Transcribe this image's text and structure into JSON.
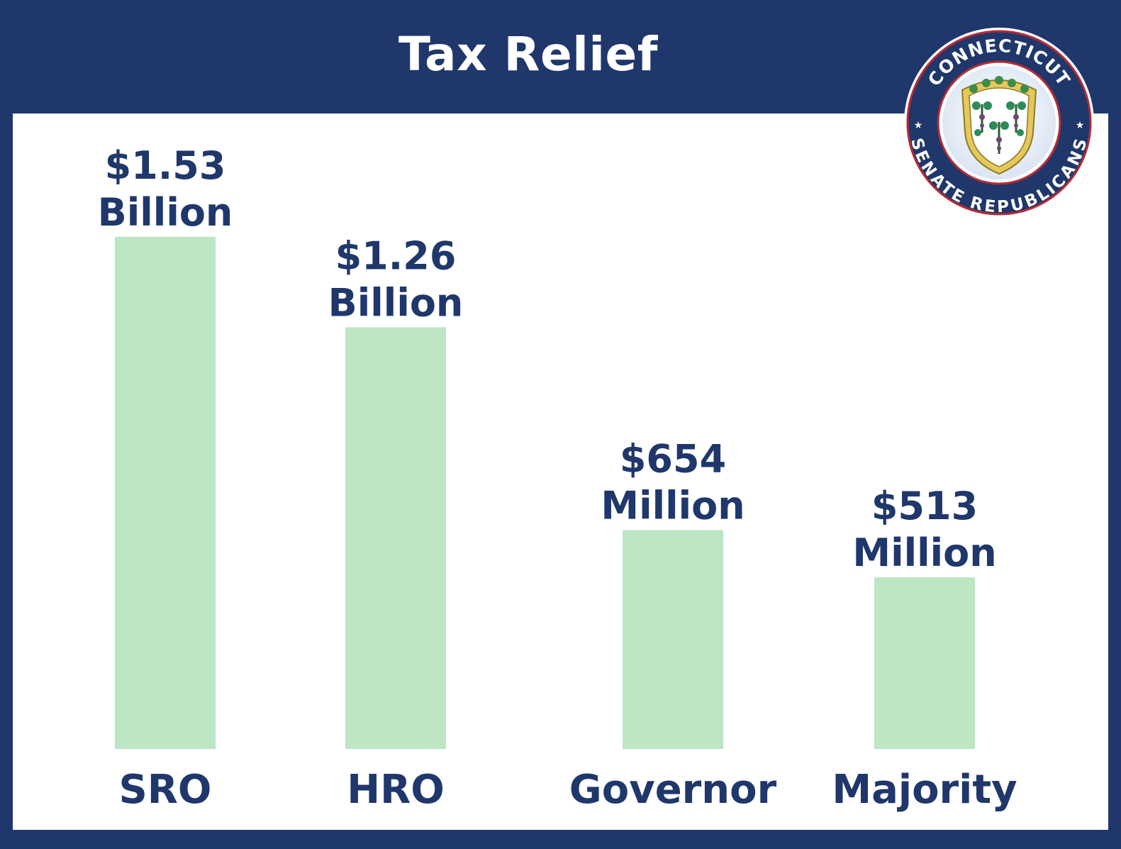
{
  "header": {
    "title": "Tax Relief"
  },
  "logo": {
    "top_text": "CONNECTICUT",
    "bottom_text": "SENATE REPUBLICANS"
  },
  "colors": {
    "header_background": "#1f376b",
    "bar_fill": "#bce6c4",
    "text_navy": "#1f376b",
    "panel_background": "#ffffff"
  },
  "chart_data": {
    "type": "bar",
    "title": "Tax Relief",
    "unit": "USD",
    "categories": [
      "SRO",
      "HRO",
      "Governor",
      "Majority"
    ],
    "values": [
      1530000000,
      1260000000,
      654000000,
      513000000
    ],
    "data_labels": [
      [
        "$1.53",
        "Billion"
      ],
      [
        "$1.26",
        "Billion"
      ],
      [
        "$654",
        "Million"
      ],
      [
        "$513",
        "Million"
      ]
    ],
    "xlabel": "",
    "ylabel": "",
    "grid": false,
    "legend": "none"
  }
}
